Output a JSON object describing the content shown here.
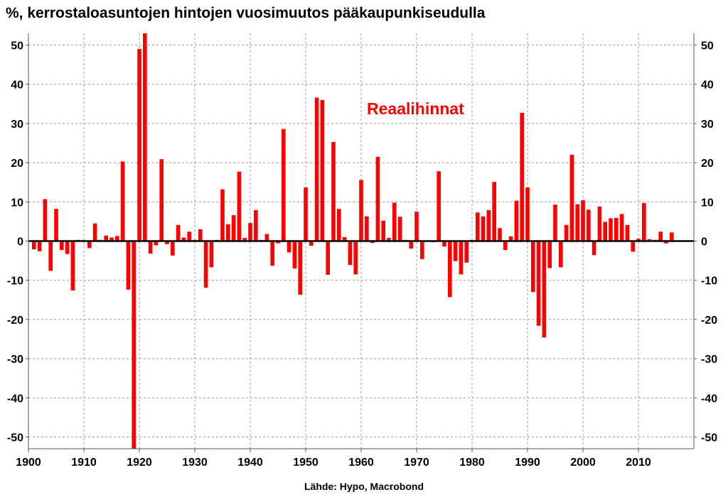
{
  "title": "%, kerrostaloasuntojen hintojen vuosimuutos pääkaupunkiseudulla",
  "source": "Lähde: Hypo, Macrobond",
  "colors": {
    "bar": "#ff0000",
    "annotation": "#ff0000",
    "grid": "#9a9a9a",
    "zero_line": "#000000",
    "axis": "#555555"
  },
  "chart_data": {
    "type": "bar",
    "title": "%, kerrostaloasuntojen hintojen vuosimuutos pääkaupunkiseudulla",
    "annotation": "Reaalihinnat",
    "xlabel": "",
    "ylabel": "",
    "grid": true,
    "grid_style": "dashed",
    "legend": "none",
    "xlim": [
      1900,
      2020
    ],
    "ylim": [
      -53,
      53
    ],
    "x_ticks": [
      1900,
      1910,
      1920,
      1930,
      1940,
      1950,
      1960,
      1970,
      1980,
      1990,
      2000,
      2010
    ],
    "x_tick_labels": [
      "1900",
      "1910",
      "1920",
      "1930",
      "1940",
      "1950",
      "1960",
      "1970",
      "1980",
      "1990",
      "2000",
      "2010"
    ],
    "y_ticks": [
      -50,
      -40,
      -30,
      -20,
      -10,
      0,
      10,
      20,
      30,
      40,
      50
    ],
    "y_tick_labels": [
      "-50",
      "-40",
      "-30",
      "-20",
      "-10",
      "0",
      "10",
      "20",
      "30",
      "40",
      "50"
    ],
    "y_axis_both_sides": true,
    "series": [
      {
        "name": "Reaalihinnat",
        "x": [
          1901,
          1902,
          1903,
          1904,
          1905,
          1906,
          1907,
          1908,
          1909,
          1910,
          1911,
          1912,
          1913,
          1914,
          1915,
          1916,
          1917,
          1918,
          1919,
          1920,
          1921,
          1922,
          1923,
          1924,
          1925,
          1926,
          1927,
          1928,
          1929,
          1930,
          1931,
          1932,
          1933,
          1934,
          1935,
          1936,
          1937,
          1938,
          1939,
          1940,
          1941,
          1942,
          1943,
          1944,
          1945,
          1946,
          1947,
          1948,
          1949,
          1950,
          1951,
          1952,
          1953,
          1954,
          1955,
          1956,
          1957,
          1958,
          1959,
          1960,
          1961,
          1962,
          1963,
          1964,
          1965,
          1966,
          1967,
          1968,
          1969,
          1970,
          1971,
          1972,
          1973,
          1974,
          1975,
          1976,
          1977,
          1978,
          1979,
          1980,
          1981,
          1982,
          1983,
          1984,
          1985,
          1986,
          1987,
          1988,
          1989,
          1990,
          1991,
          1992,
          1993,
          1994,
          1995,
          1996,
          1997,
          1998,
          1999,
          2000,
          2001,
          2002,
          2003,
          2004,
          2005,
          2006,
          2007,
          2008,
          2009,
          2010,
          2011,
          2012,
          2013,
          2014,
          2015,
          2016
        ],
        "values": [
          -2.1,
          -2.6,
          10.7,
          -7.6,
          8.2,
          -2.3,
          -3.3,
          -12.6,
          0.3,
          0.2,
          -1.8,
          4.5,
          0.3,
          1.4,
          0.9,
          1.3,
          20.3,
          -12.4,
          -53,
          49,
          53,
          -3.2,
          -1.1,
          20.9,
          -0.8,
          -3.7,
          4.1,
          0.9,
          2.4,
          0.3,
          3,
          -11.9,
          -6.7,
          0.3,
          13.2,
          4.3,
          6.6,
          17.7,
          0.8,
          4.6,
          7.9,
          0.3,
          1.8,
          -6.3,
          -0.6,
          28.6,
          -2.9,
          -7,
          -13.7,
          13.7,
          -1.2,
          36.6,
          36,
          -8.6,
          25.3,
          8.2,
          1,
          -6.1,
          -8.5,
          15.6,
          6.3,
          -0.5,
          21.5,
          5.2,
          0.8,
          9.8,
          6.2,
          0.3,
          -1.9,
          7.5,
          -4.6,
          0.2,
          -0.3,
          17.8,
          -1.4,
          -14.3,
          -5.1,
          -8.5,
          -5.5,
          0.3,
          7.3,
          6.3,
          7.9,
          15.1,
          3.3,
          -2.3,
          1.2,
          10.3,
          32.7,
          13.7,
          -13,
          -21.6,
          -24.6,
          -6.9,
          9.3,
          -6.7,
          4.1,
          22,
          9.4,
          10.4,
          8,
          -3.6,
          8.8,
          4.9,
          5.8,
          5.9,
          6.9,
          4.1,
          -2.7,
          0.6,
          9.7,
          0.5,
          0.3,
          2.4,
          -0.6,
          2.2
        ]
      }
    ]
  }
}
